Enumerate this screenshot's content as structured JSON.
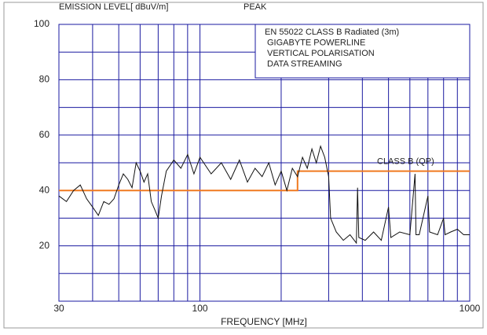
{
  "chart_data": {
    "type": "line",
    "header_left": "EMISSION LEVEL[ dBuV/m]",
    "header_mode": "PEAK",
    "info_lines": [
      "EN 55022 CLASS B Radiated (3m)",
      "GIGABYTE POWERLINE",
      "VERTICAL POLARISATION",
      "DATA STREAMING"
    ],
    "xlabel": "FREQUENCY [MHz]",
    "log_x": true,
    "grid": true,
    "xlim": [
      30,
      1000
    ],
    "xticks": [
      30,
      100,
      1000
    ],
    "x_minor_grid": [
      40,
      50,
      60,
      70,
      80,
      90,
      200,
      300,
      400,
      500,
      600,
      700,
      800,
      900
    ],
    "ylim": [
      0,
      100
    ],
    "yticks": [
      20,
      40,
      60,
      80,
      100
    ],
    "y_minor_grid": [
      10,
      30,
      50,
      70,
      90
    ],
    "limit_label": "CLASS B (QP)",
    "series": [
      {
        "name": "CLASS B (QP)",
        "color": "#f07a20",
        "x": [
          30,
          230,
          230,
          1000
        ],
        "values": [
          40,
          40,
          47,
          47
        ]
      },
      {
        "color": "#111111",
        "x": [
          30,
          32,
          34,
          36,
          38,
          40,
          42,
          44,
          46,
          48,
          50,
          52,
          54,
          56,
          58,
          60,
          62,
          64,
          66,
          68,
          70,
          72,
          75,
          80,
          85,
          90,
          95,
          100,
          110,
          120,
          130,
          140,
          150,
          160,
          170,
          180,
          190,
          200,
          210,
          220,
          230,
          240,
          250,
          260,
          270,
          280,
          290,
          300,
          305,
          320,
          340,
          360,
          380,
          384,
          388,
          410,
          440,
          470,
          500,
          510,
          550,
          600,
          627,
          632,
          650,
          700,
          710,
          760,
          800,
          810,
          850,
          900,
          950,
          1000
        ],
        "values": [
          38,
          36,
          40,
          42,
          37,
          34,
          31,
          36,
          35,
          37,
          42,
          46,
          44,
          41,
          50,
          47,
          43,
          46,
          36,
          33,
          30,
          38,
          47,
          51,
          48,
          53,
          46,
          52,
          46,
          50,
          44,
          51,
          43,
          48,
          45,
          50,
          42,
          47,
          40,
          48,
          45,
          52,
          48,
          55,
          50,
          56,
          52,
          45,
          30,
          25,
          22,
          24,
          21,
          41,
          23,
          22,
          25,
          22,
          34,
          23,
          25,
          24,
          46,
          24,
          24,
          38,
          25,
          24,
          30,
          24,
          25,
          26,
          24,
          24
        ]
      }
    ]
  }
}
